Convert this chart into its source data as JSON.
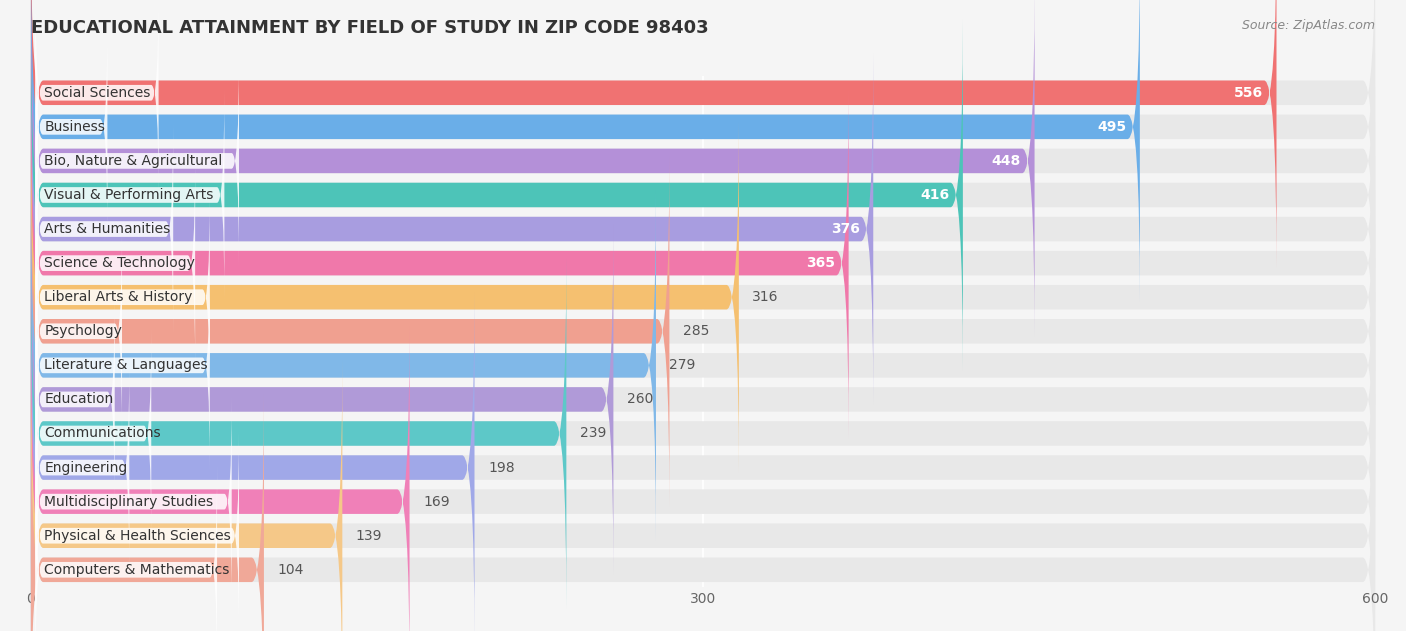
{
  "title": "EDUCATIONAL ATTAINMENT BY FIELD OF STUDY IN ZIP CODE 98403",
  "source": "Source: ZipAtlas.com",
  "categories": [
    "Social Sciences",
    "Business",
    "Bio, Nature & Agricultural",
    "Visual & Performing Arts",
    "Arts & Humanities",
    "Science & Technology",
    "Liberal Arts & History",
    "Psychology",
    "Literature & Languages",
    "Education",
    "Communications",
    "Engineering",
    "Multidisciplinary Studies",
    "Physical & Health Sciences",
    "Computers & Mathematics"
  ],
  "values": [
    556,
    495,
    448,
    416,
    376,
    365,
    316,
    285,
    279,
    260,
    239,
    198,
    169,
    139,
    104
  ],
  "bar_colors": [
    "#f07272",
    "#6aaee8",
    "#b490d8",
    "#4dc4b8",
    "#a89de0",
    "#f078aa",
    "#f5c070",
    "#f0a090",
    "#80b8e8",
    "#b09ad8",
    "#5dc8c8",
    "#a0a8e8",
    "#f080b8",
    "#f5c888",
    "#f0a898"
  ],
  "xlim": [
    0,
    600
  ],
  "xticks": [
    0,
    300,
    600
  ],
  "background_color": "#f5f5f5",
  "bar_bg_color": "#e8e8e8",
  "title_fontsize": 13,
  "label_fontsize": 10,
  "value_fontsize": 10
}
